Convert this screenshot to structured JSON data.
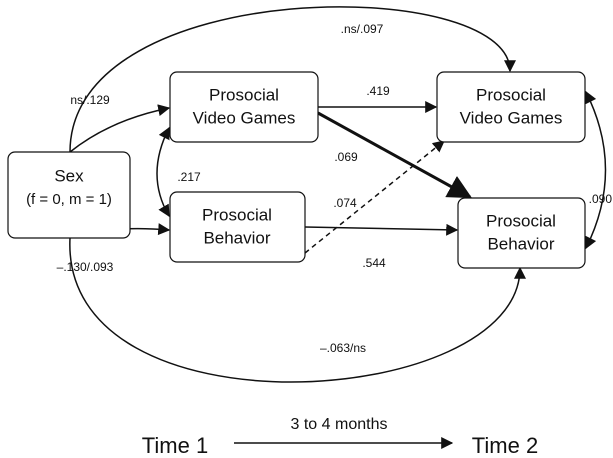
{
  "nodes": [
    {
      "lines": [
        "Sex",
        "(f = 0, m = 1)"
      ]
    },
    {
      "lines": [
        "Prosocial",
        "Video Games"
      ]
    },
    {
      "lines": [
        "Prosocial",
        "Behavior"
      ]
    },
    {
      "lines": [
        "Prosocial",
        "Video Games"
      ]
    },
    {
      "lines": [
        "Prosocial",
        "Behavior"
      ]
    }
  ],
  "edge_labels": [
    ".ns/.097",
    "ns/.129",
    ".419",
    ".217",
    ".069",
    ".074",
    ".090",
    "–.130/.093",
    ".544",
    "–.063/ns"
  ],
  "timeline": {
    "interval": "3 to 4 months",
    "start": "Time 1",
    "end": "Time 2"
  }
}
